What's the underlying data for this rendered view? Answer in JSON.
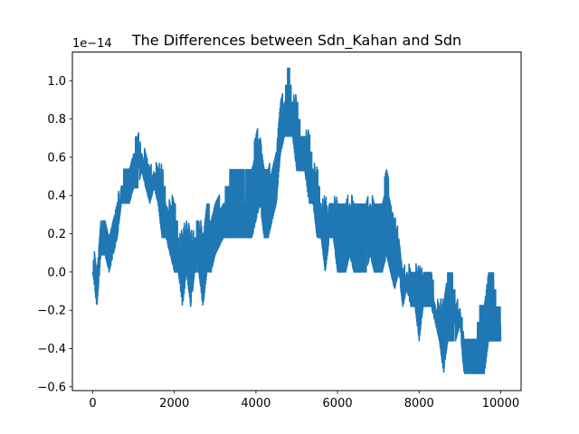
{
  "chart_data": {
    "type": "line",
    "title": "The Differences between Sdn_Kahan and Sdn",
    "xlabel": "",
    "ylabel": "",
    "y_offset_label": "1e−14",
    "xlim": [
      -500,
      10500
    ],
    "ylim": [
      -0.62,
      1.15
    ],
    "x_ticks": [
      0,
      2000,
      4000,
      6000,
      8000,
      10000
    ],
    "x_tick_labels": [
      "0",
      "2000",
      "4000",
      "6000",
      "8000",
      "10000"
    ],
    "y_ticks": [
      -0.6,
      -0.4,
      -0.2,
      0.0,
      0.2,
      0.4,
      0.6,
      0.8,
      1.0
    ],
    "y_tick_labels": [
      "−0.6",
      "−0.4",
      "−0.2",
      "0.0",
      "0.2",
      "0.4",
      "0.6",
      "0.8",
      "1.0"
    ],
    "grid": false,
    "series_color": "#1f77b4",
    "quantum": 0.0888,
    "series_envelope": {
      "x": [
        0,
        50,
        100,
        200,
        300,
        400,
        500,
        600,
        700,
        800,
        900,
        1000,
        1100,
        1200,
        1300,
        1400,
        1500,
        1600,
        1700,
        1800,
        1900,
        2000,
        2100,
        2200,
        2300,
        2400,
        2500,
        2600,
        2700,
        2800,
        2900,
        3000,
        3200,
        3400,
        3500,
        3600,
        3700,
        3800,
        3900,
        4000,
        4100,
        4200,
        4300,
        4400,
        4500,
        4600,
        4700,
        4800,
        4900,
        5000,
        5100,
        5200,
        5300,
        5400,
        5500,
        5600,
        5700,
        5800,
        5900,
        6000,
        6100,
        6200,
        6300,
        6400,
        6500,
        6600,
        6700,
        6800,
        6900,
        7000,
        7100,
        7200,
        7300,
        7400,
        7500,
        7600,
        7700,
        7800,
        7900,
        8000,
        8100,
        8200,
        8300,
        8400,
        8500,
        8600,
        8700,
        8800,
        8900,
        9000,
        9100,
        9200,
        9300,
        9400,
        9500,
        9600,
        9700,
        9800,
        9900,
        10000
      ],
      "y_min": [
        0.0,
        -0.09,
        -0.18,
        0.09,
        0.09,
        0.0,
        0.09,
        0.18,
        0.36,
        0.36,
        0.36,
        0.44,
        0.44,
        0.53,
        0.44,
        0.36,
        0.44,
        0.36,
        0.18,
        0.18,
        0.09,
        0.0,
        0.0,
        -0.18,
        0.0,
        -0.18,
        0.0,
        0.0,
        -0.18,
        0.0,
        0.0,
        0.09,
        0.18,
        0.18,
        0.18,
        0.18,
        0.18,
        0.18,
        0.18,
        0.27,
        0.36,
        0.18,
        0.18,
        0.27,
        0.36,
        0.62,
        0.71,
        0.71,
        0.71,
        0.53,
        0.53,
        0.53,
        0.36,
        0.36,
        0.18,
        0.18,
        0.0,
        0.18,
        0.18,
        0.0,
        0.0,
        0.0,
        0.09,
        0.0,
        0.0,
        0.0,
        0.0,
        0.09,
        0.0,
        0.0,
        0.0,
        0.09,
        0.0,
        -0.09,
        0.0,
        -0.18,
        -0.09,
        -0.18,
        -0.18,
        -0.36,
        -0.18,
        -0.18,
        -0.18,
        -0.27,
        -0.36,
        -0.53,
        -0.36,
        -0.36,
        -0.36,
        -0.27,
        -0.53,
        -0.53,
        -0.53,
        -0.53,
        -0.53,
        -0.53,
        -0.36,
        -0.36,
        -0.36,
        -0.36
      ],
      "y_max": [
        0.0,
        0.09,
        0.0,
        0.27,
        0.27,
        0.18,
        0.27,
        0.36,
        0.44,
        0.53,
        0.53,
        0.62,
        0.71,
        0.62,
        0.62,
        0.53,
        0.53,
        0.53,
        0.53,
        0.36,
        0.36,
        0.36,
        0.18,
        0.18,
        0.27,
        0.18,
        0.18,
        0.27,
        0.18,
        0.36,
        0.27,
        0.36,
        0.36,
        0.53,
        0.53,
        0.53,
        0.53,
        0.53,
        0.53,
        0.71,
        0.71,
        0.53,
        0.53,
        0.53,
        0.62,
        0.89,
        0.89,
        1.07,
        0.89,
        0.89,
        0.71,
        0.71,
        0.71,
        0.53,
        0.53,
        0.36,
        0.36,
        0.36,
        0.36,
        0.36,
        0.36,
        0.36,
        0.36,
        0.36,
        0.36,
        0.36,
        0.36,
        0.36,
        0.36,
        0.36,
        0.36,
        0.53,
        0.36,
        0.27,
        0.18,
        0.0,
        0.0,
        0.0,
        0.0,
        0.0,
        0.0,
        0.0,
        0.0,
        -0.18,
        -0.18,
        -0.18,
        0.0,
        0.0,
        -0.18,
        -0.18,
        -0.36,
        -0.36,
        -0.36,
        -0.36,
        -0.18,
        -0.18,
        0.0,
        0.0,
        -0.18,
        -0.18
      ]
    }
  }
}
